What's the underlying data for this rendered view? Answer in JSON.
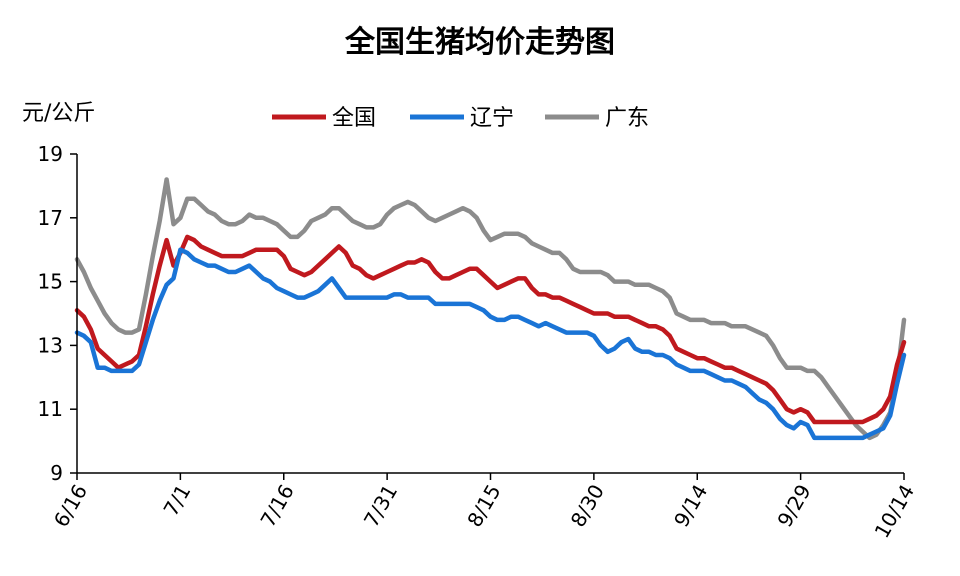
{
  "chart_data": {
    "type": "line",
    "title": "全国生猪均价走势图",
    "ylabel": "元/公斤",
    "xlabel": "",
    "ylim": [
      9,
      19
    ],
    "yticks": [
      9,
      11,
      13,
      15,
      17,
      19
    ],
    "x": [
      "6/16",
      "6/17",
      "6/18",
      "6/19",
      "6/20",
      "6/21",
      "6/22",
      "6/23",
      "6/24",
      "6/25",
      "6/26",
      "6/27",
      "6/28",
      "6/29",
      "6/30",
      "7/1",
      "7/2",
      "7/3",
      "7/4",
      "7/5",
      "7/6",
      "7/7",
      "7/8",
      "7/9",
      "7/10",
      "7/11",
      "7/12",
      "7/13",
      "7/14",
      "7/15",
      "7/16",
      "7/17",
      "7/18",
      "7/19",
      "7/20",
      "7/21",
      "7/22",
      "7/23",
      "7/24",
      "7/25",
      "7/26",
      "7/27",
      "7/28",
      "7/29",
      "7/30",
      "7/31",
      "8/1",
      "8/2",
      "8/3",
      "8/4",
      "8/5",
      "8/6",
      "8/7",
      "8/8",
      "8/9",
      "8/10",
      "8/11",
      "8/12",
      "8/13",
      "8/14",
      "8/15",
      "8/16",
      "8/17",
      "8/18",
      "8/19",
      "8/20",
      "8/21",
      "8/22",
      "8/23",
      "8/24",
      "8/25",
      "8/26",
      "8/27",
      "8/28",
      "8/29",
      "8/30",
      "8/31",
      "9/1",
      "9/2",
      "9/3",
      "9/4",
      "9/5",
      "9/6",
      "9/7",
      "9/8",
      "9/9",
      "9/10",
      "9/11",
      "9/12",
      "9/13",
      "9/14",
      "9/15",
      "9/16",
      "9/17",
      "9/18",
      "9/19",
      "9/20",
      "9/21",
      "9/22",
      "9/23",
      "9/24",
      "9/25",
      "9/26",
      "9/27",
      "9/28",
      "9/29",
      "9/30",
      "10/1",
      "10/2",
      "10/3",
      "10/4",
      "10/5",
      "10/6",
      "10/7",
      "10/8",
      "10/9",
      "10/10",
      "10/11",
      "10/12",
      "10/13",
      "10/14"
    ],
    "xtick_labels": [
      "6/16",
      "7/1",
      "7/16",
      "7/31",
      "8/15",
      "8/30",
      "9/14",
      "9/29",
      "10/14"
    ],
    "legend_position": "top",
    "series": [
      {
        "name": "全国",
        "color": "#c0191e",
        "values": [
          14.1,
          13.9,
          13.5,
          12.9,
          12.7,
          12.5,
          12.3,
          12.4,
          12.5,
          12.7,
          13.6,
          14.6,
          15.5,
          16.3,
          15.5,
          15.9,
          16.4,
          16.3,
          16.1,
          16.0,
          15.9,
          15.8,
          15.8,
          15.8,
          15.8,
          15.9,
          16.0,
          16.0,
          16.0,
          16.0,
          15.8,
          15.4,
          15.3,
          15.2,
          15.3,
          15.5,
          15.7,
          15.9,
          16.1,
          15.9,
          15.5,
          15.4,
          15.2,
          15.1,
          15.2,
          15.3,
          15.4,
          15.5,
          15.6,
          15.6,
          15.7,
          15.6,
          15.3,
          15.1,
          15.1,
          15.2,
          15.3,
          15.4,
          15.4,
          15.2,
          15.0,
          14.8,
          14.9,
          15.0,
          15.1,
          15.1,
          14.8,
          14.6,
          14.6,
          14.5,
          14.5,
          14.4,
          14.3,
          14.2,
          14.1,
          14.0,
          14.0,
          14.0,
          13.9,
          13.9,
          13.9,
          13.8,
          13.7,
          13.6,
          13.6,
          13.5,
          13.3,
          12.9,
          12.8,
          12.7,
          12.6,
          12.6,
          12.5,
          12.4,
          12.3,
          12.3,
          12.2,
          12.1,
          12.0,
          11.9,
          11.8,
          11.6,
          11.3,
          11.0,
          10.9,
          11.0,
          10.9,
          10.6,
          10.6,
          10.6,
          10.6,
          10.6,
          10.6,
          10.6,
          10.6,
          10.7,
          10.8,
          11.0,
          11.4,
          12.4,
          13.1
        ]
      },
      {
        "name": "辽宁",
        "color": "#1a74d6",
        "values": [
          13.4,
          13.3,
          13.1,
          12.3,
          12.3,
          12.2,
          12.2,
          12.2,
          12.2,
          12.4,
          13.1,
          13.8,
          14.4,
          14.9,
          15.1,
          16.0,
          15.9,
          15.7,
          15.6,
          15.5,
          15.5,
          15.4,
          15.3,
          15.3,
          15.4,
          15.5,
          15.3,
          15.1,
          15.0,
          14.8,
          14.7,
          14.6,
          14.5,
          14.5,
          14.6,
          14.7,
          14.9,
          15.1,
          14.8,
          14.5,
          14.5,
          14.5,
          14.5,
          14.5,
          14.5,
          14.5,
          14.6,
          14.6,
          14.5,
          14.5,
          14.5,
          14.5,
          14.3,
          14.3,
          14.3,
          14.3,
          14.3,
          14.3,
          14.2,
          14.1,
          13.9,
          13.8,
          13.8,
          13.9,
          13.9,
          13.8,
          13.7,
          13.6,
          13.7,
          13.6,
          13.5,
          13.4,
          13.4,
          13.4,
          13.4,
          13.3,
          13.0,
          12.8,
          12.9,
          13.1,
          13.2,
          12.9,
          12.8,
          12.8,
          12.7,
          12.7,
          12.6,
          12.4,
          12.3,
          12.2,
          12.2,
          12.2,
          12.1,
          12.0,
          11.9,
          11.9,
          11.8,
          11.7,
          11.5,
          11.3,
          11.2,
          11.0,
          10.7,
          10.5,
          10.4,
          10.6,
          10.5,
          10.1,
          10.1,
          10.1,
          10.1,
          10.1,
          10.1,
          10.1,
          10.1,
          10.2,
          10.3,
          10.4,
          10.8,
          11.8,
          12.7
        ]
      },
      {
        "name": "广东",
        "color": "#8c8c8c",
        "values": [
          15.7,
          15.3,
          14.8,
          14.4,
          14.0,
          13.7,
          13.5,
          13.4,
          13.4,
          13.5,
          14.6,
          15.8,
          16.9,
          18.2,
          16.8,
          17.0,
          17.6,
          17.6,
          17.4,
          17.2,
          17.1,
          16.9,
          16.8,
          16.8,
          16.9,
          17.1,
          17.0,
          17.0,
          16.9,
          16.8,
          16.6,
          16.4,
          16.4,
          16.6,
          16.9,
          17.0,
          17.1,
          17.3,
          17.3,
          17.1,
          16.9,
          16.8,
          16.7,
          16.7,
          16.8,
          17.1,
          17.3,
          17.4,
          17.5,
          17.4,
          17.2,
          17.0,
          16.9,
          17.0,
          17.1,
          17.2,
          17.3,
          17.2,
          17.0,
          16.6,
          16.3,
          16.4,
          16.5,
          16.5,
          16.5,
          16.4,
          16.2,
          16.1,
          16.0,
          15.9,
          15.9,
          15.7,
          15.4,
          15.3,
          15.3,
          15.3,
          15.3,
          15.2,
          15.0,
          15.0,
          15.0,
          14.9,
          14.9,
          14.9,
          14.8,
          14.7,
          14.5,
          14.0,
          13.9,
          13.8,
          13.8,
          13.8,
          13.7,
          13.7,
          13.7,
          13.6,
          13.6,
          13.6,
          13.5,
          13.4,
          13.3,
          13.0,
          12.6,
          12.3,
          12.3,
          12.3,
          12.2,
          12.2,
          12.0,
          11.7,
          11.4,
          11.1,
          10.8,
          10.5,
          10.3,
          10.1,
          10.2,
          10.5,
          10.9,
          12.0,
          13.8
        ]
      }
    ]
  }
}
